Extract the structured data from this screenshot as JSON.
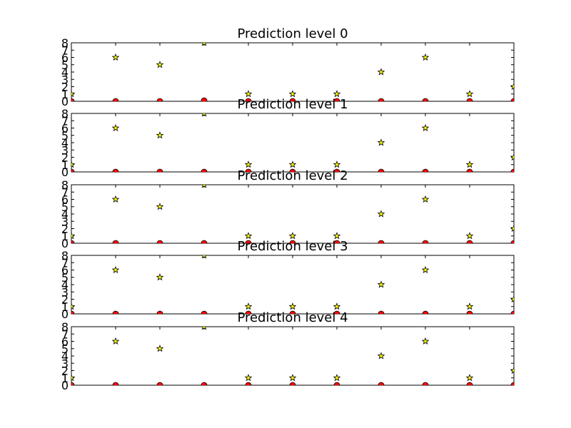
{
  "chart_data": [
    {
      "type": "scatter",
      "title": "Prediction level 0",
      "x": [
        0,
        1,
        2,
        3,
        4,
        5,
        6,
        7,
        8,
        9,
        10
      ],
      "series": [
        {
          "name": "stars",
          "marker": "star",
          "color": "#ffff00",
          "values": [
            1,
            6,
            5,
            8,
            1,
            1,
            1,
            4,
            6,
            1,
            2
          ]
        },
        {
          "name": "circles",
          "marker": "circle",
          "color": "#ff0000",
          "values": [
            0,
            0,
            0,
            0.1,
            0,
            0,
            0,
            0,
            0,
            0,
            0
          ]
        }
      ],
      "xlim": [
        0,
        10
      ],
      "ylim": [
        0,
        8
      ],
      "yticks": [
        "0",
        "1",
        "2",
        "3",
        "4",
        "5",
        "6",
        "7",
        "8"
      ]
    },
    {
      "type": "scatter",
      "title": "Prediction level 1",
      "x": [
        0,
        1,
        2,
        3,
        4,
        5,
        6,
        7,
        8,
        9,
        10
      ],
      "series": [
        {
          "name": "stars",
          "marker": "star",
          "color": "#ffff00",
          "values": [
            1,
            6,
            5,
            8,
            1,
            1,
            1,
            4,
            6,
            1,
            2
          ]
        },
        {
          "name": "circles",
          "marker": "circle",
          "color": "#ff0000",
          "values": [
            0,
            0,
            0,
            0,
            0,
            0,
            0,
            0,
            0,
            0,
            0
          ]
        }
      ],
      "xlim": [
        0,
        10
      ],
      "ylim": [
        0,
        8
      ],
      "yticks": [
        "0",
        "1",
        "2",
        "3",
        "4",
        "5",
        "6",
        "7",
        "8"
      ]
    },
    {
      "type": "scatter",
      "title": "Prediction level 2",
      "x": [
        0,
        1,
        2,
        3,
        4,
        5,
        6,
        7,
        8,
        9,
        10
      ],
      "series": [
        {
          "name": "stars",
          "marker": "star",
          "color": "#ffff00",
          "values": [
            1,
            6,
            5,
            8,
            1,
            1,
            1,
            4,
            6,
            1,
            2
          ]
        },
        {
          "name": "circles",
          "marker": "circle",
          "color": "#ff0000",
          "values": [
            0,
            0,
            0,
            0,
            0,
            0,
            0,
            0,
            0,
            0,
            0
          ]
        }
      ],
      "xlim": [
        0,
        10
      ],
      "ylim": [
        0,
        8
      ],
      "yticks": [
        "0",
        "1",
        "2",
        "3",
        "4",
        "5",
        "6",
        "7",
        "8"
      ]
    },
    {
      "type": "scatter",
      "title": "Prediction level 3",
      "x": [
        0,
        1,
        2,
        3,
        4,
        5,
        6,
        7,
        8,
        9,
        10
      ],
      "series": [
        {
          "name": "stars",
          "marker": "star",
          "color": "#ffff00",
          "values": [
            1,
            6,
            5,
            8,
            1,
            1,
            1,
            4,
            6,
            1,
            2
          ]
        },
        {
          "name": "circles",
          "marker": "circle",
          "color": "#ff0000",
          "values": [
            0,
            0,
            0,
            0,
            0,
            0,
            0,
            0,
            0,
            0,
            0
          ]
        }
      ],
      "xlim": [
        0,
        10
      ],
      "ylim": [
        0,
        8
      ],
      "yticks": [
        "0",
        "1",
        "2",
        "3",
        "4",
        "5",
        "6",
        "7",
        "8"
      ]
    },
    {
      "type": "scatter",
      "title": "Prediction level 4",
      "x": [
        0,
        1,
        2,
        3,
        4,
        5,
        6,
        7,
        8,
        9,
        10
      ],
      "series": [
        {
          "name": "stars",
          "marker": "star",
          "color": "#ffff00",
          "values": [
            1,
            6,
            5,
            8,
            1,
            1,
            1,
            4,
            6,
            1,
            2
          ]
        },
        {
          "name": "circles",
          "marker": "circle",
          "color": "#ff0000",
          "values": [
            0,
            0,
            0,
            0,
            0,
            0,
            0,
            0,
            0,
            0,
            0
          ]
        }
      ],
      "xlim": [
        0,
        10
      ],
      "ylim": [
        0,
        8
      ],
      "yticks": [
        "0",
        "1",
        "2",
        "3",
        "4",
        "5",
        "6",
        "7",
        "8"
      ]
    }
  ]
}
